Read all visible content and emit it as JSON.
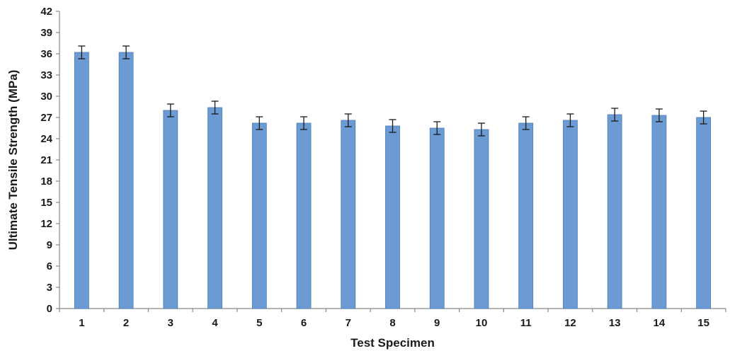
{
  "chart_data": {
    "type": "bar",
    "title": "",
    "xlabel": "Test Specimen",
    "ylabel": "Ultimate Tensile Strength (MPa)",
    "ylim": [
      0,
      42
    ],
    "yticks": [
      "0",
      "3",
      "6",
      "9",
      "12",
      "15",
      "18",
      "21",
      "24",
      "27",
      "30",
      "33",
      "36",
      "39",
      "42"
    ],
    "categories": [
      "1",
      "2",
      "3",
      "4",
      "5",
      "6",
      "7",
      "8",
      "9",
      "10",
      "11",
      "12",
      "13",
      "14",
      "15"
    ],
    "values": [
      36.2,
      36.2,
      28.0,
      28.4,
      26.2,
      26.2,
      26.6,
      25.8,
      25.5,
      25.3,
      26.2,
      26.6,
      27.4,
      27.3,
      27.0
    ],
    "errors": [
      0.9,
      0.9,
      0.9,
      0.9,
      0.9,
      0.9,
      0.9,
      0.9,
      0.9,
      0.9,
      0.9,
      0.9,
      0.9,
      0.9,
      0.9
    ],
    "grid": false,
    "legend": "none",
    "bar_color": "#6b9bd2",
    "bar_edge_color": "#4a7db5",
    "axis_color": "#888888"
  }
}
